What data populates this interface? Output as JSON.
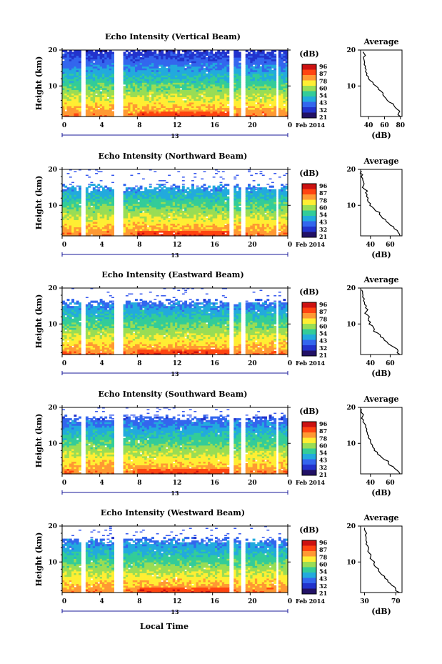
{
  "chart_data": {
    "type": "heatmap",
    "date_label": "Feb 2014",
    "day_label": "13",
    "xlabel": "Local Time",
    "ylabel": "Height (km)",
    "x_ticks": [
      "0",
      "4",
      "8",
      "12",
      "16",
      "20",
      "0"
    ],
    "xlim": [
      0,
      24
    ],
    "ylim": [
      1.5,
      20
    ],
    "y_ticks": [
      "20",
      "10"
    ],
    "colorbar": {
      "unit": "(dB)",
      "ticks": [
        "96",
        "87",
        "78",
        "60",
        "54",
        "43",
        "32",
        "21"
      ],
      "colors": [
        "#cc1111",
        "#ff4411",
        "#ff9933",
        "#ffee33",
        "#99dd55",
        "#33cc99",
        "#22aadd",
        "#3366ee",
        "#2233cc",
        "#221166"
      ]
    },
    "data_gaps_hours": [
      [
        2.0,
        2.5
      ],
      [
        5.5,
        6.6
      ],
      [
        17.7,
        18.2
      ],
      [
        19.0,
        19.5
      ],
      [
        22.7,
        23.1
      ]
    ],
    "panels": [
      {
        "title": "Echo Intensity (Vertical Beam)",
        "top_km": 20,
        "avg": {
          "title": "Average",
          "xlabel": "(dB)",
          "x_ticks": [
            "40",
            "60",
            "80"
          ],
          "xlim": [
            30,
            82
          ],
          "height_km": [
            1.5,
            2.5,
            3.5,
            4.5,
            5.5,
            6.5,
            7.5,
            8.5,
            9.5,
            10.5,
            11.5,
            12.5,
            13.5,
            14.5,
            15.5,
            16.5,
            17.5,
            18.5,
            19.5
          ],
          "values_db": [
            80,
            78,
            76,
            72,
            66,
            62,
            58,
            56,
            52,
            46,
            42,
            40,
            38,
            37,
            36,
            35,
            34,
            36,
            33
          ]
        }
      },
      {
        "title": "Echo Intensity (Northward Beam)",
        "top_km": 15,
        "avg": {
          "title": "Average",
          "xlabel": "(dB)",
          "x_ticks": [
            "40",
            "60"
          ],
          "xlim": [
            30,
            72
          ],
          "height_km": [
            1.5,
            2.5,
            3.5,
            4.5,
            5.5,
            6.5,
            7.5,
            8.5,
            9.5,
            10.5,
            11.5,
            12.5,
            13.5,
            14.5,
            15.5,
            16.5,
            17.5,
            18.5,
            19.5
          ],
          "values_db": [
            70,
            68,
            64,
            60,
            56,
            52,
            49,
            45,
            42,
            40,
            37,
            36,
            35,
            34,
            33,
            33,
            32,
            32,
            31
          ]
        }
      },
      {
        "title": "Echo Intensity (Eastward Beam)",
        "top_km": 16,
        "avg": {
          "title": "Average",
          "xlabel": "(dB)",
          "x_ticks": [
            "40",
            "60"
          ],
          "xlim": [
            30,
            72
          ],
          "height_km": [
            1.5,
            2.5,
            3.5,
            4.5,
            5.5,
            6.5,
            7.5,
            8.5,
            9.5,
            10.5,
            11.5,
            12.5,
            13.5,
            14.5,
            15.5,
            16.5,
            17.5,
            18.5,
            19.5
          ],
          "values_db": [
            70,
            68,
            64,
            58,
            54,
            50,
            47,
            44,
            42,
            40,
            38,
            37,
            36,
            35,
            34,
            33,
            32,
            32,
            31
          ]
        }
      },
      {
        "title": "Echo Intensity (Southward Beam)",
        "top_km": 17,
        "avg": {
          "title": "Average",
          "xlabel": "(dB)",
          "x_ticks": [
            "40",
            "60"
          ],
          "xlim": [
            30,
            72
          ],
          "height_km": [
            1.5,
            2.5,
            3.5,
            4.5,
            5.5,
            6.5,
            7.5,
            8.5,
            9.5,
            10.5,
            11.5,
            12.5,
            13.5,
            14.5,
            15.5,
            16.5,
            17.5,
            18.5,
            19.5
          ],
          "values_db": [
            70,
            67,
            63,
            58,
            54,
            50,
            47,
            44,
            42,
            40,
            38,
            37,
            36,
            35,
            34,
            33,
            32,
            31,
            31
          ]
        }
      },
      {
        "title": "Echo Intensity (Westward Beam)",
        "top_km": 16,
        "avg": {
          "title": "Average",
          "xlabel": "(dB)",
          "x_ticks": [
            "30",
            "70"
          ],
          "xlim": [
            25,
            78
          ],
          "height_km": [
            1.5,
            2.5,
            3.5,
            4.5,
            5.5,
            6.5,
            7.5,
            8.5,
            9.5,
            10.5,
            11.5,
            12.5,
            13.5,
            14.5,
            15.5,
            16.5,
            17.5,
            18.5,
            19.5
          ],
          "values_db": [
            75,
            70,
            65,
            60,
            56,
            52,
            48,
            45,
            42,
            40,
            38,
            36,
            35,
            34,
            33,
            32,
            31,
            31,
            30
          ]
        }
      }
    ]
  }
}
